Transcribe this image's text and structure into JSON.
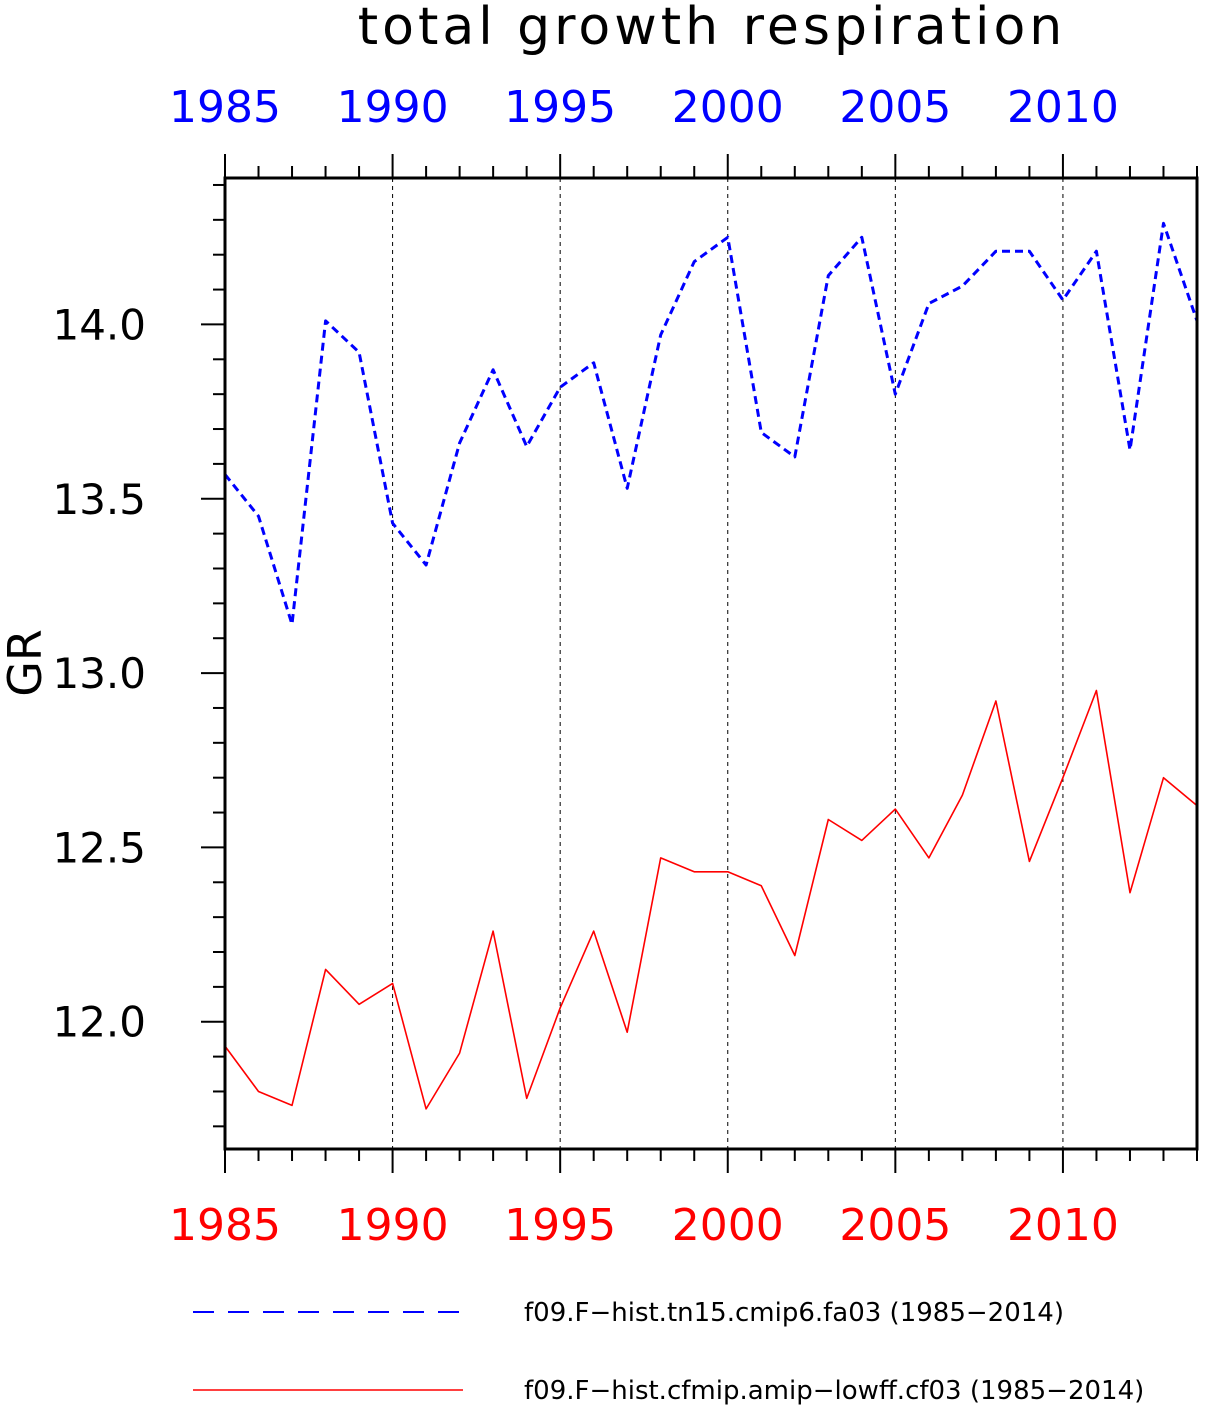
{
  "chart_data": {
    "type": "line",
    "title": "total growth respiration",
    "ylabel": "GR",
    "xlabel": "",
    "xlim": [
      1985,
      2014
    ],
    "ylim": [
      11.635,
      14.42
    ],
    "yticks": [
      12.0,
      12.5,
      13.0,
      13.5,
      14.0
    ],
    "ytick_labels": [
      "12.0",
      "12.5",
      "13.0",
      "13.5",
      "14.0"
    ],
    "xticks_major": [
      1985,
      1990,
      1995,
      2000,
      2005,
      2010
    ],
    "top_axis_tick_labels": [
      "1985",
      "1990",
      "1995",
      "2000",
      "2005",
      "2010"
    ],
    "bottom_axis_tick_labels": [
      "1985",
      "1990",
      "1995",
      "2000",
      "2005",
      "2010"
    ],
    "vertical_gridlines": [
      1990,
      1995,
      2000,
      2005,
      2010
    ],
    "legend_position": "bottom",
    "x": [
      1985,
      1986,
      1987,
      1988,
      1989,
      1990,
      1991,
      1992,
      1993,
      1994,
      1995,
      1996,
      1997,
      1998,
      1999,
      2000,
      2001,
      2002,
      2003,
      2004,
      2005,
      2006,
      2007,
      2008,
      2009,
      2010,
      2011,
      2012,
      2013,
      2014
    ],
    "series": [
      {
        "name": "f09.F−hist.tn15.cmip6.fa03 (1985−2014)",
        "color": "#0000ff",
        "style": "dashed",
        "values": [
          13.57,
          13.45,
          13.14,
          14.01,
          13.92,
          13.43,
          13.31,
          13.66,
          13.87,
          13.65,
          13.82,
          13.89,
          13.53,
          13.97,
          14.18,
          14.25,
          13.69,
          13.62,
          14.14,
          14.25,
          13.8,
          14.06,
          14.11,
          14.21,
          14.21,
          14.07,
          14.21,
          13.64,
          14.29,
          14.01
        ]
      },
      {
        "name": "f09.F−hist.cfmip.amip−lowff.cf03 (1985−2014)",
        "color": "#ff0000",
        "style": "solid",
        "values": [
          11.93,
          11.8,
          11.76,
          12.15,
          12.05,
          12.11,
          11.75,
          11.91,
          12.26,
          11.78,
          12.04,
          12.26,
          11.97,
          12.47,
          12.43,
          12.43,
          12.39,
          12.19,
          12.58,
          12.52,
          12.61,
          12.47,
          12.65,
          12.92,
          12.46,
          12.7,
          12.95,
          12.37,
          12.7,
          12.62
        ]
      }
    ]
  }
}
